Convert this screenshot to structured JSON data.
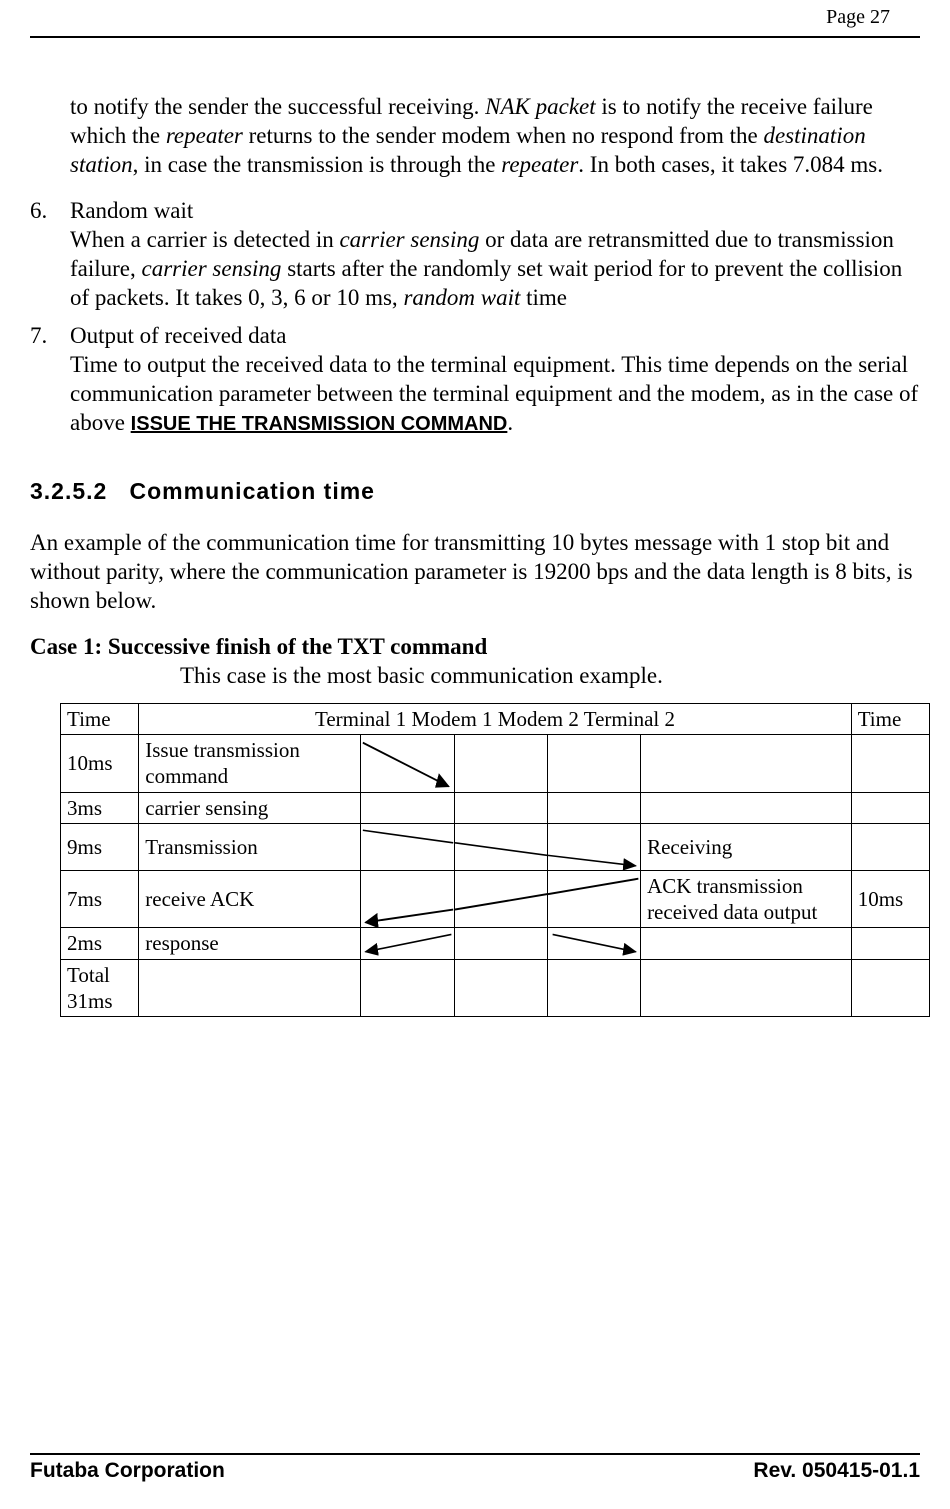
{
  "page_number_label": "Page  27",
  "intro_para": {
    "pre": "to notify the sender the successful receiving. ",
    "nak": "NAK packet",
    "mid1": " is to notify the receive failure which the ",
    "rep1": "repeater",
    "mid2": " returns to the sender modem when no respond from the ",
    "dest": "destination station",
    "mid3": ", in case the transmission is through the ",
    "rep2": "repeater",
    "tail": ". In both cases, it takes 7.084 ms."
  },
  "item6": {
    "num": "6.",
    "title": "Random wait",
    "pre": "When a carrier is detected in ",
    "cs1": "carrier sensing",
    "mid1": " or data are retransmitted due to transmission failure, ",
    "cs2": "carrier sensing",
    "mid2": " starts after the randomly set wait period for to prevent the collision of packets. It takes 0, 3, 6 or 10 ms, ",
    "rw": "random wait",
    "tail": " time"
  },
  "item7": {
    "num": "7.",
    "title": "Output of received data",
    "body_pre": "Time to output the received data to the terminal equipment. This time depends on the serial communication parameter between the terminal equipment and the modem, as in the case of  above  ",
    "ref": "ISSUE THE TRANSMISSION COMMAND",
    "body_post": "."
  },
  "sec_num": "3.2.5.2",
  "sec_title": "Communication time",
  "sec_para": "An example of the communication time for transmitting 10 bytes message with 1 stop bit and without parity, where the communication parameter is 19200 bps and the data length is 8 bits, is shown below.",
  "case1_heading": "Case 1: Successive finish of the TXT command",
  "case1_sub": "This case is the most basic communication example.",
  "table": {
    "header": {
      "time_l": "Time",
      "mid": "Terminal 1       Modem 1      Modem 2     Terminal 2",
      "time_r": "Time"
    },
    "rows": [
      {
        "time_l": "10ms",
        "a": "Issue transmission command",
        "e": "",
        "time_r": "",
        "arrow": "r1",
        "tall": true
      },
      {
        "time_l": "3ms",
        "a": "carrier sensing",
        "e": "",
        "time_r": "",
        "arrow": "",
        "tall": false
      },
      {
        "time_l": "9ms",
        "a": "Transmission",
        "e": "Receiving",
        "time_r": "",
        "arrow": "r3",
        "tall": true
      },
      {
        "time_l": "7ms",
        "a": "receive ACK",
        "e": "ACK transmission received data output",
        "time_r": "10ms",
        "arrow": "r4",
        "tall": true
      },
      {
        "time_l": "2ms",
        "a": "response",
        "e": "",
        "time_r": "",
        "arrow": "r5",
        "tall": false
      },
      {
        "time_l": "Total 31ms",
        "a": "",
        "e": "",
        "time_r": "",
        "arrow": "",
        "tall": true
      }
    ]
  },
  "footer_left": "Futaba Corporation",
  "footer_right": "Rev. 050415-01.1",
  "colors": {
    "text": "#000000",
    "bg": "#ffffff",
    "rule": "#000000"
  }
}
